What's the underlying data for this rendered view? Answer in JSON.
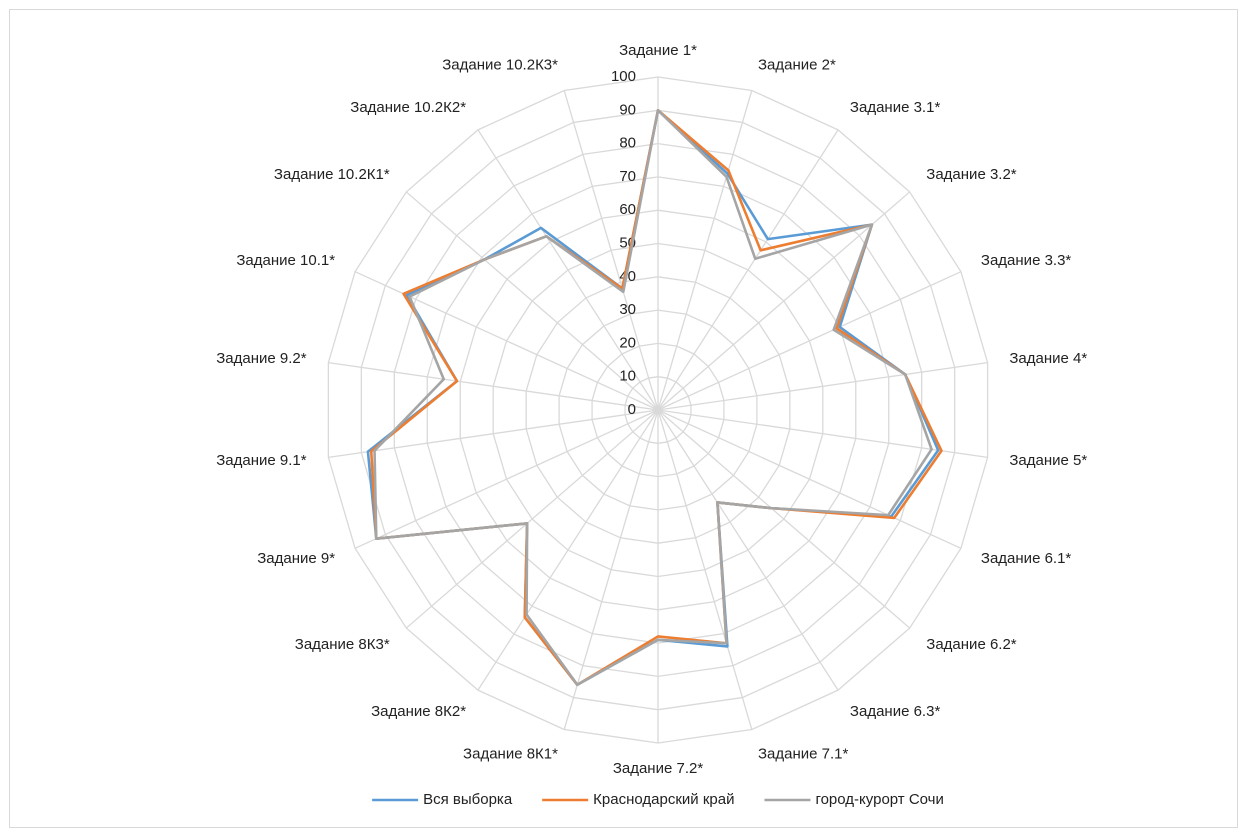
{
  "chart_data": {
    "type": "radar",
    "categories": [
      "Задание 1*",
      "Задание 2*",
      "Задание 3.1*",
      "Задание 3.2*",
      "Задание 3.3*",
      "Задание 4*",
      "Задание 5*",
      "Задание 6.1*",
      "Задание 6.2*",
      "Задание 6.3*",
      "Задание 7.1*",
      "Задание 7.2*",
      "Задание 8К1*",
      "Задание 8К2*",
      "Задание 8К3*",
      "Задание 9*",
      "Задание 9.1*",
      "Задание 9.2*",
      "Задание 10.1*",
      "Задание 10.2К1*",
      "Задание 10.2К2*",
      "Задание 10.2К3*"
    ],
    "series": [
      {
        "name": "Вся выборка",
        "color": "#5b9bd5",
        "values": [
          90,
          74,
          61,
          85,
          60,
          75,
          85,
          77,
          45,
          33,
          74,
          69,
          86,
          74,
          52,
          93,
          88,
          61,
          83,
          69,
          65,
          38
        ]
      },
      {
        "name": "Краснодарский край",
        "color": "#ed7d31",
        "values": [
          90,
          75,
          57,
          85,
          59,
          75,
          86,
          78,
          45,
          33,
          73,
          68,
          86,
          74,
          52,
          93,
          87,
          61,
          84,
          69,
          62,
          38
        ]
      },
      {
        "name": "город-курорт Сочи",
        "color": "#a5a5a5",
        "values": [
          90,
          73,
          54,
          85,
          58,
          75,
          83,
          76,
          45,
          33,
          73,
          69,
          86,
          73,
          52,
          93,
          86,
          65,
          82,
          69,
          62,
          37
        ]
      }
    ],
    "ylim": [
      0,
      100
    ],
    "yticks": [
      0,
      10,
      20,
      30,
      40,
      50,
      60,
      70,
      80,
      90,
      100
    ],
    "grid": true,
    "legend": "bottom"
  }
}
